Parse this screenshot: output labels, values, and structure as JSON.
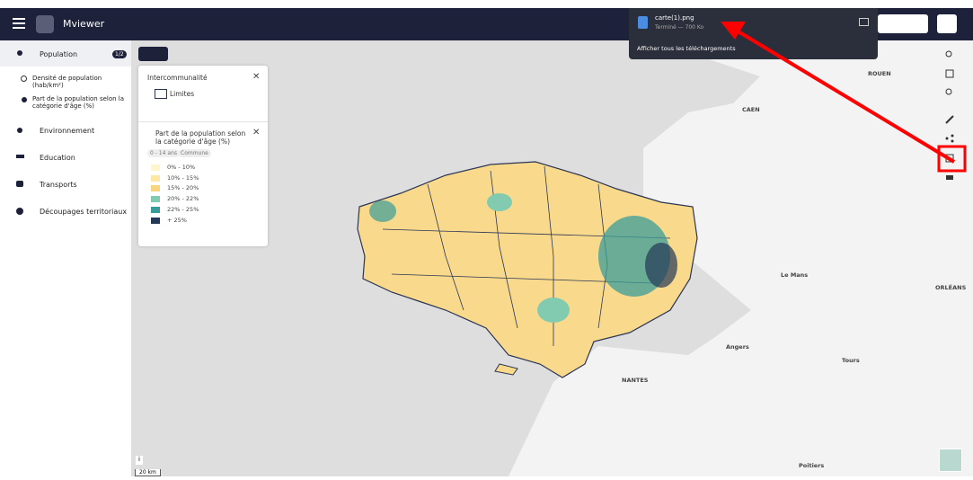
{
  "header": {
    "app_name": "Mviewer"
  },
  "sidebar": {
    "sections": [
      {
        "label": "Population",
        "badge": "1/2",
        "layers": [
          "Densité de population (hab/km²)",
          "Part de la population selon la catégorie d'âge (%)"
        ]
      },
      {
        "label": "Environnement"
      },
      {
        "label": "Education"
      },
      {
        "label": "Transports"
      },
      {
        "label": "Découpages territoriaux"
      }
    ]
  },
  "legend": {
    "layers": [
      {
        "title": "Intercommunalité",
        "items": [
          {
            "label": "Limites"
          }
        ]
      },
      {
        "title": "Part de la population selon la catégorie d'âge (%)",
        "chips": [
          "0 - 14 ans",
          "Commune"
        ],
        "items": [
          {
            "label": "0% - 10%",
            "color": "#fff5cf"
          },
          {
            "label": "10% - 15%",
            "color": "#fde7a6"
          },
          {
            "label": "15% - 20%",
            "color": "#f8d47c"
          },
          {
            "label": "20% - 22%",
            "color": "#82cbb0"
          },
          {
            "label": "22% - 25%",
            "color": "#3a9c98"
          },
          {
            "label": "+ 25%",
            "color": "#243857"
          }
        ]
      }
    ]
  },
  "download": {
    "file": "carte(1).png",
    "status": "Terminé — 700 Ko",
    "show_all": "Afficher tous les téléchargements"
  },
  "map": {
    "places": [
      "ROUEN",
      "CAEN",
      "Le Mans",
      "ORLÉANS",
      "Angers",
      "Tours",
      "NANTES",
      "Poitiers"
    ],
    "scale": "20 km"
  }
}
